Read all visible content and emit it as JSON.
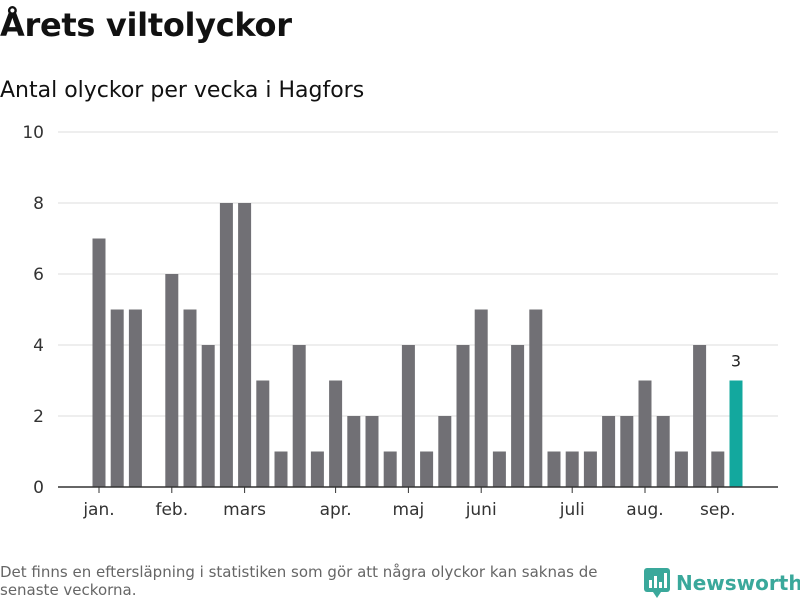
{
  "header": {
    "title": "Årets viltolyckor",
    "subtitle": "Antal olyckor per vecka i Hagfors"
  },
  "footer": {
    "note": "Det finns en eftersläpning i statistiken som gör att några olyckor kan saknas de senaste veckorna.",
    "brand": "Newsworthy"
  },
  "colors": {
    "bar": "#717075",
    "highlight": "#13a89e",
    "grid": "#dddddd",
    "axis": "#333333",
    "brand": "#3aa89b"
  },
  "icons": {
    "brand_logo": "bar-chart-pin-icon"
  },
  "chart_data": {
    "type": "bar",
    "ylim": [
      0,
      10
    ],
    "yticks": [
      0,
      2,
      4,
      6,
      8,
      10
    ],
    "grid": true,
    "values": [
      7,
      5,
      5,
      0,
      6,
      5,
      4,
      8,
      8,
      3,
      1,
      4,
      1,
      3,
      2,
      2,
      1,
      4,
      1,
      2,
      4,
      5,
      1,
      4,
      5,
      1,
      1,
      1,
      2,
      2,
      3,
      2,
      1,
      4,
      1,
      3
    ],
    "highlight_index": 35,
    "highlight_label": "3",
    "month_labels": [
      {
        "label": "jan.",
        "bar": 0
      },
      {
        "label": "feb.",
        "bar": 4
      },
      {
        "label": "mars",
        "bar": 8
      },
      {
        "label": "apr.",
        "bar": 13
      },
      {
        "label": "maj",
        "bar": 17
      },
      {
        "label": "juni",
        "bar": 21
      },
      {
        "label": "juli",
        "bar": 26
      },
      {
        "label": "aug.",
        "bar": 30
      },
      {
        "label": "sep.",
        "bar": 34
      }
    ]
  }
}
